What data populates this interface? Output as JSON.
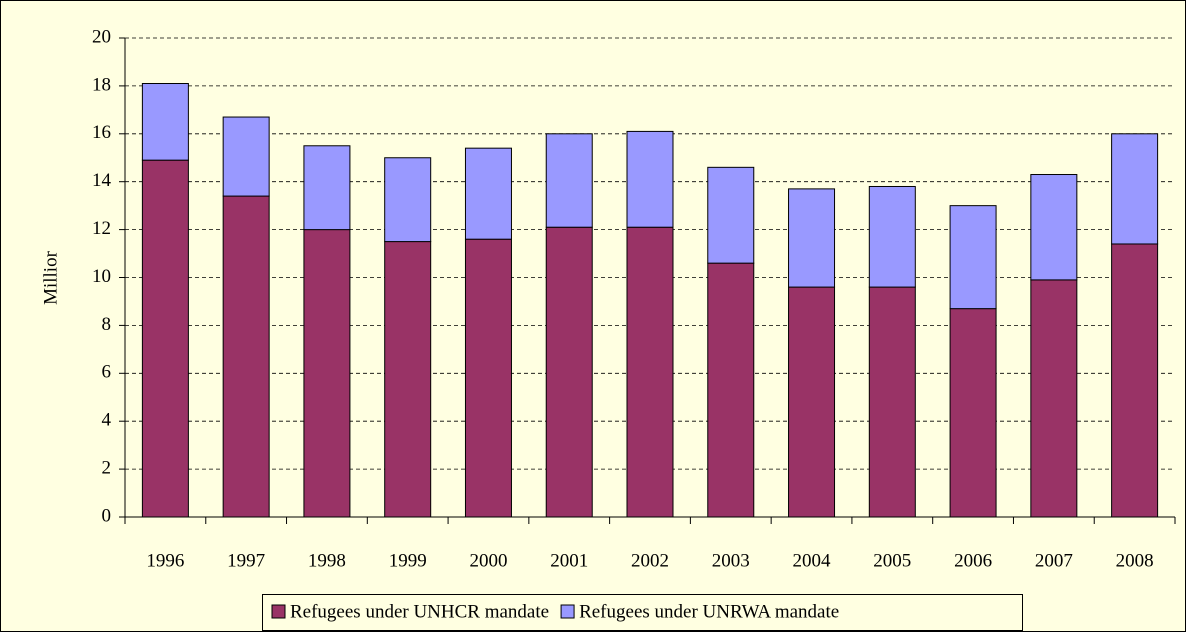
{
  "chart_data": {
    "type": "stacked_bar",
    "y_label": "Millior",
    "categories": [
      "1996",
      "1997",
      "1998",
      "1999",
      "2000",
      "2001",
      "2002",
      "2003",
      "2004",
      "2005",
      "2006",
      "2007",
      "2008"
    ],
    "series": [
      {
        "name": "Refugees under UNHCR mandate",
        "color": "#993366",
        "values": [
          14.9,
          13.4,
          12.0,
          11.5,
          11.6,
          12.1,
          12.1,
          10.6,
          9.6,
          9.6,
          8.7,
          9.9,
          11.4
        ]
      },
      {
        "name": "Refugees under UNRWA mandate",
        "color": "#9999ff",
        "values": [
          3.2,
          3.3,
          3.5,
          3.5,
          3.8,
          3.9,
          4.0,
          4.0,
          4.1,
          4.2,
          4.3,
          4.4,
          4.6
        ]
      }
    ],
    "ylim": [
      0,
      20
    ],
    "yticks": [
      0,
      2,
      4,
      6,
      8,
      10,
      12,
      14,
      16,
      18,
      20
    ],
    "grid": true,
    "legend": "bottom"
  }
}
